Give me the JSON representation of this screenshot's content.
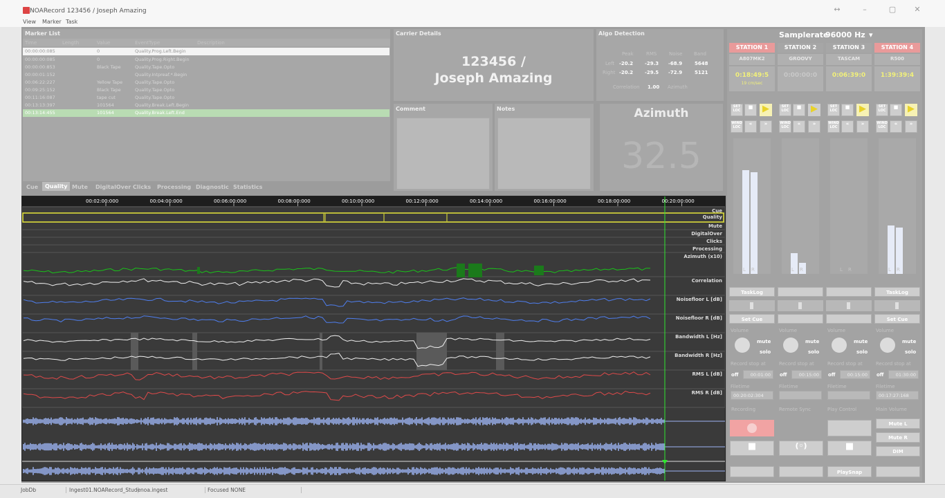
{
  "window": {
    "title": "NOARecord 123456 / Joseph Amazing",
    "controls": [
      "↔",
      "–",
      "▢",
      "✕"
    ]
  },
  "menu": [
    "View",
    "Marker",
    "Task"
  ],
  "marker_list": {
    "title": "Marker List",
    "columns": [
      "Time",
      "Length",
      "Value",
      "EventType",
      "Description"
    ],
    "rows": [
      {
        "time": "00:00:00:085",
        "length": "",
        "value": "0",
        "type": "Quality.Prog.Left.Begin"
      },
      {
        "time": "00:00:00:085",
        "length": "",
        "value": "0",
        "type": "Quality.Prog.Right.Begin"
      },
      {
        "time": "00:00:00:853",
        "length": "",
        "value": "Black Tape",
        "type": "Quality.Tape.Opto"
      },
      {
        "time": "00:00:01:152",
        "length": "",
        "value": "",
        "type": "Quality.Intpreaf.*.Begin"
      },
      {
        "time": "00:06:22:227",
        "length": "",
        "value": "Yellow Tape",
        "type": "Quality.Tape.Opto"
      },
      {
        "time": "00:09:25:152",
        "length": "",
        "value": "Black Tape",
        "type": "Quality.Tape.Opto"
      },
      {
        "time": "00:11:16:087",
        "length": "",
        "value": "tape cut",
        "type": "Quality.Tape.Opto"
      },
      {
        "time": "00:13:13:397",
        "length": "",
        "value": "101564",
        "type": "Quality.Break.Left.Begin"
      },
      {
        "time": "00:13:14:455",
        "length": "",
        "value": "101564",
        "type": "Quality.Break.Left.End"
      }
    ]
  },
  "tabs": [
    "Cue",
    "Quality",
    "Mute",
    "DigitalOver",
    "Clicks",
    "Processing",
    "Diagnostic",
    "Statistics"
  ],
  "carrier": {
    "title": "Carrier Details",
    "line1": "123456 /",
    "line2": "Joseph Amazing",
    "comment": "Comment",
    "notes": "Notes"
  },
  "algo": {
    "title": "Algo Detection",
    "headers": [
      "Peak",
      "RMS",
      "Noise",
      "Band"
    ],
    "left": {
      "label": "Left",
      "vals": [
        "-20.2",
        "-29.3",
        "-68.9",
        "5648"
      ]
    },
    "right": {
      "label": "Right",
      "vals": [
        "-20.2",
        "-29.5",
        "-72.9",
        "5121"
      ]
    },
    "correlation_label": "Correlation",
    "correlation": "1.00",
    "azimuth_label": "Azimuth",
    "azimuth_title": "Azimuth",
    "azimuth_value": "32.5"
  },
  "samplerate": {
    "label": "Samplerate",
    "value": "96000 Hz",
    "arrow": "▾"
  },
  "stations": [
    {
      "name": "STATION 1",
      "device": "A807MK2",
      "time": "0:18:49:5",
      "speed": "19 cm/sec",
      "task": "TaskLog",
      "cue": "Set Cue",
      "record_off": "off",
      "record_time": "00:01:00",
      "filetime": "00:20:02:304",
      "active": true
    },
    {
      "name": "STATION 2",
      "device": "GROOVY",
      "time": "0:00:00:0",
      "speed": "",
      "task": "",
      "cue": "",
      "record_off": "off",
      "record_time": "00:15:00",
      "filetime": "",
      "active": false
    },
    {
      "name": "STATION 3",
      "device": "TASCAM",
      "time": "0:06:39:0",
      "speed": "",
      "task": "",
      "cue": "",
      "record_off": "off",
      "record_time": "00:15:00",
      "filetime": "",
      "active": false
    },
    {
      "name": "STATION 4",
      "device": "R500",
      "time": "1:39:39:4",
      "speed": "",
      "task": "TaskLog",
      "cue": "Set Cue",
      "record_off": "off",
      "record_time": "01:30:00",
      "filetime": "00:17:27:168",
      "active": true
    }
  ],
  "controls": {
    "set_loc": "SET LOC",
    "wind_loc": "WIND LOC",
    "volume": "Volume",
    "mute": "mute",
    "solo": "solo",
    "record_stop": "Record stop at",
    "filetime": "Filetime",
    "recording": "Recording",
    "remote_sync": "Remote Sync",
    "play_control": "Play Control",
    "main_volume": "Main Volume",
    "mute_l": "Mute L",
    "mute_r": "Mute R",
    "dim": "DIM",
    "playsnap": "PlaySnap",
    "meter_labels": [
      "L",
      "R"
    ]
  },
  "timeline": {
    "ticks": [
      "00:02:00:000",
      "00:04:00:000",
      "00:06:00:000",
      "00:08:00:000",
      "00:10:00:000",
      "00:12:00:000",
      "00:14:00:000",
      "00:16:00:000",
      "00:18:00:000",
      "00:20:00:000"
    ],
    "tracks": [
      "Cue",
      "Quality",
      "Mute",
      "DigitalOver",
      "Clicks",
      "Processing",
      "Azimuth (x10)",
      "Correlation",
      "Noisefloor L [dB]",
      "Noisefloor R [dB]",
      "Bandwidth L [Hz]",
      "Bandwidth R [Hz]",
      "RMS L [dB]",
      "RMS R [dB]"
    ],
    "colors": {
      "azimuth": "#19c319",
      "correlation": "#f0f0f0",
      "noise": "#4f7ff0",
      "bandwidth": "#f0f0f0",
      "rms": "#e04a4a",
      "wave": "#9db4f5",
      "playhead": "#2ee82e",
      "quality": "#e8e83a"
    }
  },
  "statusbar": [
    "JobDb",
    "Ingest01.NOARecord_Stude",
    "noa.ingest",
    "Focused NONE"
  ]
}
